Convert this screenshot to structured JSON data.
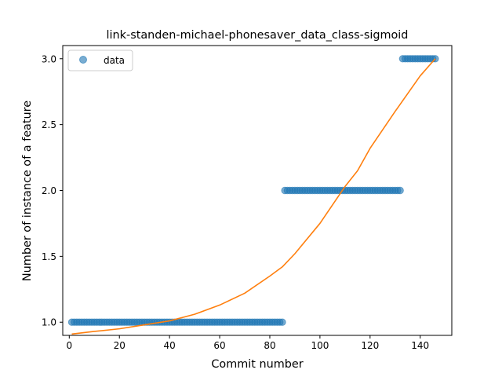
{
  "chart_data": {
    "type": "scatter",
    "title": "link-standen-michael-phonesaver_data_class-sigmoid",
    "xlabel": "Commit number",
    "ylabel": "Number of instance of a feature",
    "xlim": [
      -2.6,
      152.6
    ],
    "ylim": [
      0.9,
      3.1
    ],
    "xticks": [
      0,
      20,
      40,
      60,
      80,
      100,
      120,
      140
    ],
    "yticks": [
      1.0,
      1.5,
      2.0,
      2.5,
      3.0
    ],
    "xtick_labels": [
      "0",
      "20",
      "40",
      "60",
      "80",
      "100",
      "120",
      "140"
    ],
    "ytick_labels": [
      "1.0",
      "1.5",
      "2.0",
      "2.5",
      "3.0"
    ],
    "grid": false,
    "legend": {
      "position": "top-left",
      "entries": [
        "data"
      ]
    },
    "series": [
      {
        "name": "data",
        "kind": "scatter",
        "color": "#1f77b4",
        "segments": [
          {
            "x_start": 1,
            "x_end": 85,
            "y": 1.0
          },
          {
            "x_start": 86,
            "x_end": 132,
            "y": 2.0
          },
          {
            "x_start": 133,
            "x_end": 146,
            "y": 3.0
          }
        ]
      },
      {
        "kind": "line",
        "color": "#ff7f0e",
        "x": [
          1,
          10,
          20,
          30,
          40,
          50,
          60,
          70,
          80,
          85,
          90,
          100,
          110,
          115,
          120,
          130,
          140,
          146
        ],
        "y": [
          0.91,
          0.93,
          0.95,
          0.98,
          1.01,
          1.06,
          1.13,
          1.22,
          1.35,
          1.42,
          1.52,
          1.75,
          2.03,
          2.15,
          2.32,
          2.6,
          2.87,
          3.0
        ]
      }
    ]
  }
}
